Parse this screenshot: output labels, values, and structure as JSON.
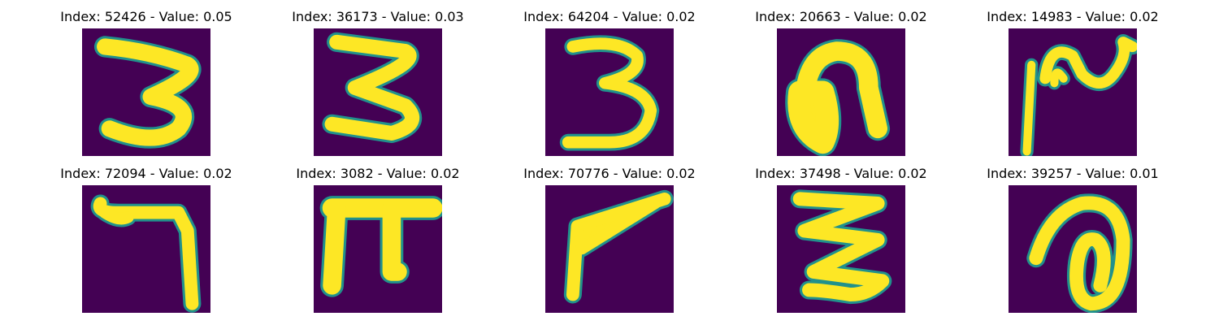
{
  "figure": {
    "title_template": "Index: {index} - Value: {value}",
    "background": "#440154",
    "foreground": "#fde725",
    "edge": "#21918c",
    "panels": [
      {
        "index": "52426",
        "value": "0.05",
        "title": "Index: 52426 - Value: 0.05",
        "glyph": "digit-3-bold-icon"
      },
      {
        "index": "36173",
        "value": "0.03",
        "title": "Index: 36173 - Value: 0.03",
        "glyph": "digit-3-zigzag-icon"
      },
      {
        "index": "64204",
        "value": "0.02",
        "title": "Index: 64204 - Value: 0.02",
        "glyph": "digit-3-thin-icon"
      },
      {
        "index": "20663",
        "value": "0.02",
        "title": "Index: 20663 - Value: 0.02",
        "glyph": "arch-blob-icon"
      },
      {
        "index": "14983",
        "value": "0.02",
        "title": "Index: 14983 - Value: 0.02",
        "glyph": "squiggle-stroke-icon"
      },
      {
        "index": "72094",
        "value": "0.02",
        "title": "Index: 72094 - Value: 0.02",
        "glyph": "hook-seven-icon"
      },
      {
        "index": "3082",
        "value": "0.02",
        "title": "Index: 3082 - Value: 0.02",
        "glyph": "pi-shape-icon"
      },
      {
        "index": "70776",
        "value": "0.02",
        "title": "Index: 70776 - Value: 0.02",
        "glyph": "angle-stroke-icon"
      },
      {
        "index": "37498",
        "value": "0.02",
        "title": "Index: 37498 - Value: 0.02",
        "glyph": "zigzag-z-icon"
      },
      {
        "index": "39257",
        "value": "0.01",
        "title": "Index: 39257 - Value: 0.01",
        "glyph": "loop-curl-icon"
      }
    ]
  }
}
